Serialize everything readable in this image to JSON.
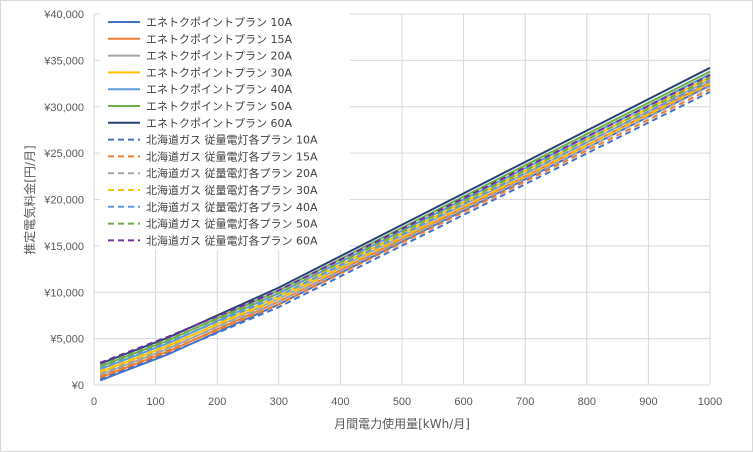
{
  "chart_data": {
    "type": "line",
    "title": "",
    "xlabel": "月間電力使用量[kWh/月]",
    "ylabel": "推定電気料金[円/月]",
    "xlim": [
      0,
      1000
    ],
    "ylim": [
      0,
      40000
    ],
    "x_ticks": [
      "0",
      "100",
      "200",
      "300",
      "400",
      "500",
      "600",
      "700",
      "800",
      "900",
      "1000"
    ],
    "y_ticks": [
      "¥0",
      "¥5,000",
      "¥10,000",
      "¥15,000",
      "¥20,000",
      "¥25,000",
      "¥30,000",
      "¥35,000",
      "¥40,000"
    ],
    "grid": "vertical and horizontal",
    "legend_position": "top-left",
    "x": [
      10,
      120,
      300,
      1000
    ],
    "series": [
      {
        "name": "エネトクポイントプラン 10A",
        "color": "#4472c4",
        "dash": "solid",
        "values": [
          500,
          3300,
          8700,
          32300
        ]
      },
      {
        "name": "エネトクポイントプラン 15A",
        "color": "#ed7d31",
        "dash": "solid",
        "values": [
          800,
          3600,
          9000,
          32600
        ]
      },
      {
        "name": "エネトクポイントプラン 20A",
        "color": "#a5a5a5",
        "dash": "solid",
        "values": [
          1100,
          3900,
          9300,
          32900
        ]
      },
      {
        "name": "エネトクポイントプラン 30A",
        "color": "#ffc000",
        "dash": "solid",
        "values": [
          1400,
          4200,
          9600,
          33200
        ]
      },
      {
        "name": "エネトクポイントプラン 40A",
        "color": "#5b9bd5",
        "dash": "solid",
        "values": [
          1700,
          4500,
          9900,
          33500
        ]
      },
      {
        "name": "エネトクポイントプラン 50A",
        "color": "#70ad47",
        "dash": "solid",
        "values": [
          2000,
          4800,
          10200,
          33800
        ]
      },
      {
        "name": "エネトクポイントプラン 60A",
        "color": "#264478",
        "dash": "solid",
        "values": [
          2300,
          5100,
          10500,
          34200
        ]
      },
      {
        "name": "北海道ガス 従量電灯各プラン 10A",
        "color": "#4472c4",
        "dash": "dashed",
        "values": [
          600,
          3400,
          8400,
          31600
        ]
      },
      {
        "name": "北海道ガス 従量電灯各プラン 15A",
        "color": "#ed7d31",
        "dash": "dashed",
        "values": [
          900,
          3700,
          8700,
          31900
        ]
      },
      {
        "name": "北海道ガス 従量電灯各プラン 20A",
        "color": "#a5a5a5",
        "dash": "dashed",
        "values": [
          1200,
          4000,
          9000,
          32200
        ]
      },
      {
        "name": "北海道ガス 従量電灯各プラン 30A",
        "color": "#ffc000",
        "dash": "dashed",
        "values": [
          1500,
          4300,
          9300,
          32500
        ]
      },
      {
        "name": "北海道ガス 従量電灯各プラン 40A",
        "color": "#5b9bd5",
        "dash": "dashed",
        "values": [
          1800,
          4600,
          9600,
          32800
        ]
      },
      {
        "name": "北海道ガス 従量電灯各プラン 50A",
        "color": "#70ad47",
        "dash": "dashed",
        "values": [
          2100,
          4900,
          9900,
          33100
        ]
      },
      {
        "name": "北海道ガス 従量電灯各プラン 60A",
        "color": "#7030a0",
        "dash": "dashed",
        "values": [
          2400,
          5200,
          10200,
          33400
        ]
      }
    ]
  }
}
